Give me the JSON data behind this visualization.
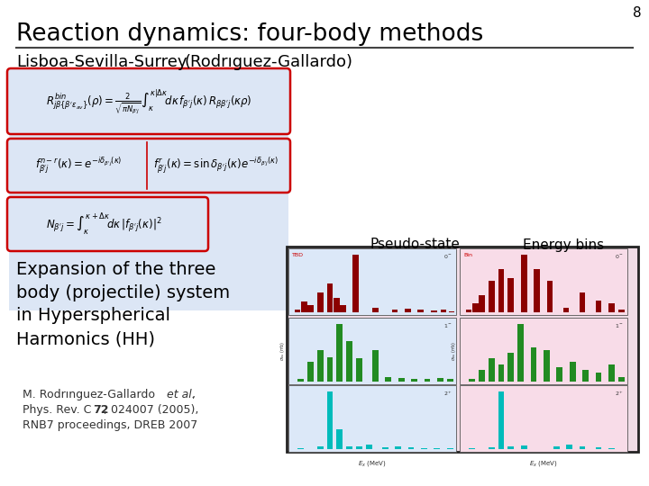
{
  "slide_number": "8",
  "title": "Reaction dynamics: four-body methods",
  "subtitle_left": "Lisboa-Sevilla-Surrey",
  "subtitle_right": "(Rodrıguez-Gallardo)",
  "label_pseudo": "Pseudo-state",
  "label_energy": "Energy bins",
  "text_expansion": "Expansion of the three\nbody (projectile) system\nin Hyperspherical\nHarmonics (HH)",
  "ref_line1": "M. Rodrınguez-Gallardo ",
  "ref_line1_italic": "et al.",
  "ref_line1_end": ",",
  "ref_line2": "Phys. Rev. C ",
  "ref_line2_bold": "72",
  "ref_line2_end": ", 024007 (2005),",
  "ref_line3": "RNB7 proceedings, DREB 2007",
  "bg_color": "#ffffff",
  "formula_bg": "#dce6f5",
  "formula_border": "#cc0000",
  "chart_outer_bg": "#f0dce6",
  "chart_inner_bg_left": "#dce6f0",
  "chart_inner_bg_right": "#f0dce6",
  "title_color": "#000000",
  "slide_num_color": "#000000",
  "dark_red": "#8B0000",
  "green": "#228B22",
  "cyan": "#00BBBB"
}
